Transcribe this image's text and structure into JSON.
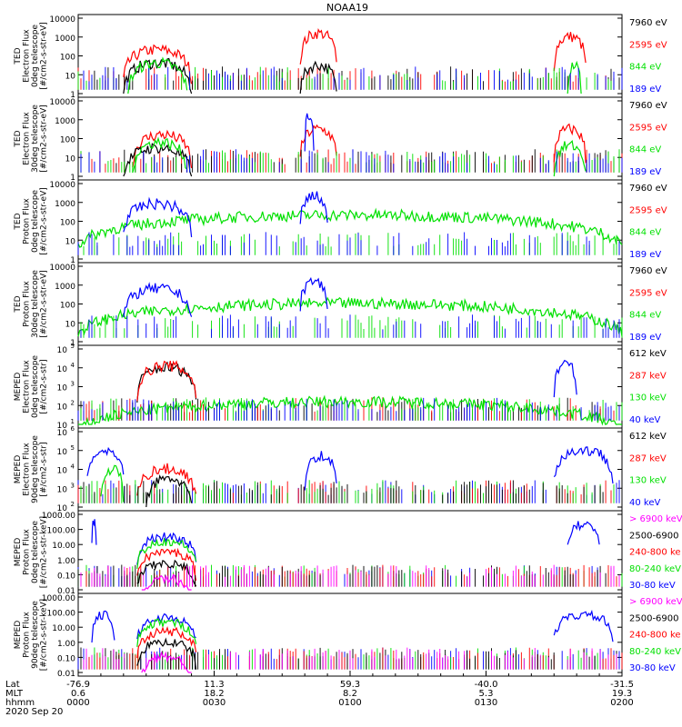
{
  "title": "NOAA19",
  "colors": {
    "blue": "#0000ff",
    "red": "#ff0000",
    "green": "#00e000",
    "black": "#000000",
    "magenta": "#ff00ff"
  },
  "panels": [
    {
      "id": "ted-e-0",
      "ylabel": [
        "TED",
        "Electron Flux",
        "0deg telescope",
        "[#/cm2-s-str-eV]"
      ],
      "yticks": [
        "10000",
        "1000",
        "100",
        "10",
        "1"
      ],
      "sup": false,
      "legend": [
        {
          "text": "7960 eV",
          "color": "black"
        },
        {
          "text": "2595 eV",
          "color": "red"
        },
        {
          "text": "844 eV",
          "color": "green"
        },
        {
          "text": "189 eV",
          "color": "blue"
        }
      ]
    },
    {
      "id": "ted-e-30",
      "ylabel": [
        "TED",
        "Electron Flux",
        "30deg telescope",
        "[#/cm2-s-str-eV]"
      ],
      "yticks": [
        "10000",
        "1000",
        "100",
        "10",
        "1"
      ],
      "sup": false,
      "legend": [
        {
          "text": "7960 eV",
          "color": "black"
        },
        {
          "text": "2595 eV",
          "color": "red"
        },
        {
          "text": "844 eV",
          "color": "green"
        },
        {
          "text": "189 eV",
          "color": "blue"
        }
      ]
    },
    {
      "id": "ted-p-0",
      "ylabel": [
        "TED",
        "Proton Flux",
        "0deg telescope",
        "[#/cm2-s-str-eV]"
      ],
      "yticks": [
        "10000",
        "1000",
        "100",
        "10",
        "1"
      ],
      "sup": false,
      "legend": [
        {
          "text": "7960 eV",
          "color": "black"
        },
        {
          "text": "2595 eV",
          "color": "red"
        },
        {
          "text": "844 eV",
          "color": "green"
        },
        {
          "text": "189 eV",
          "color": "blue"
        }
      ]
    },
    {
      "id": "ted-p-30",
      "ylabel": [
        "TED",
        "Proton Flux",
        "30deg telescope",
        "[#/cm2-s-str-eV]"
      ],
      "yticks": [
        "10000",
        "1000",
        "100",
        "10",
        "1"
      ],
      "sup": false,
      "legend": [
        {
          "text": "7960 eV",
          "color": "black"
        },
        {
          "text": "2595 eV",
          "color": "red"
        },
        {
          "text": "844 eV",
          "color": "green"
        },
        {
          "text": "189 eV",
          "color": "blue"
        }
      ]
    },
    {
      "id": "meped-e-0",
      "ylabel": [
        "MEPED",
        "Electron Flux",
        "0deg telescope",
        "[#/cm2-s-str]"
      ],
      "yticks": [
        "5",
        "4",
        "3",
        "2",
        "1"
      ],
      "sup": true,
      "legend": [
        {
          "text": "612 keV",
          "color": "black"
        },
        {
          "text": "287 keV",
          "color": "red"
        },
        {
          "text": "130 keV",
          "color": "green"
        },
        {
          "text": "40 keV",
          "color": "blue"
        }
      ]
    },
    {
      "id": "meped-e-90",
      "ylabel": [
        "MEPED",
        "Electron Flux",
        "90deg telescope",
        "[#/cm2-s-str]"
      ],
      "yticks": [
        "6",
        "5",
        "4",
        "3",
        "2"
      ],
      "sup": true,
      "legend": [
        {
          "text": "612 keV",
          "color": "black"
        },
        {
          "text": "287 keV",
          "color": "red"
        },
        {
          "text": "130 keV",
          "color": "green"
        },
        {
          "text": "40 keV",
          "color": "blue"
        }
      ]
    },
    {
      "id": "meped-p-0",
      "ylabel": [
        "MEPED",
        "Proton Flux",
        "0deg telescope",
        "[#/cm2-s-str-keV]"
      ],
      "yticks": [
        "1000.00",
        "100.00",
        "10.00",
        "1.00",
        "0.10",
        "0.01"
      ],
      "sup": false,
      "legend": [
        {
          "text": "> 6900 keV",
          "color": "magenta"
        },
        {
          "text": "2500-6900",
          "color": "black"
        },
        {
          "text": "240-800 ke",
          "color": "red"
        },
        {
          "text": "80-240 keV",
          "color": "green"
        },
        {
          "text": "30-80 keV",
          "color": "blue"
        }
      ]
    },
    {
      "id": "meped-p-90",
      "ylabel": [
        "MEPED",
        "Proton Flux",
        "90deg telescope",
        "[#/cm2-s-str-keV]"
      ],
      "yticks": [
        "1000.00",
        "100.00",
        "10.00",
        "1.00",
        "0.10",
        "0.01"
      ],
      "sup": false,
      "legend": [
        {
          "text": "> 6900 keV",
          "color": "magenta"
        },
        {
          "text": "2500-6900",
          "color": "black"
        },
        {
          "text": "240-800 ke",
          "color": "red"
        },
        {
          "text": "80-240 keV",
          "color": "green"
        },
        {
          "text": "30-80 keV",
          "color": "blue"
        }
      ]
    }
  ],
  "xaxis": {
    "row_labels": [
      "Lat",
      "MLT",
      "hhmm"
    ],
    "ticks": [
      {
        "lat": "-76.9",
        "mlt": "0.6",
        "hhmm": "0000"
      },
      {
        "lat": "11.3",
        "mlt": "18.2",
        "hhmm": "0030"
      },
      {
        "lat": "59.3",
        "mlt": "8.2",
        "hhmm": "0100"
      },
      {
        "lat": "-40.0",
        "mlt": "5.3",
        "hhmm": "0130"
      },
      {
        "lat": "-31.5",
        "mlt": "19.3",
        "hhmm": "0200"
      }
    ],
    "date": "2020 Sep 20"
  },
  "chart_data": {
    "type": "line",
    "title": "NOAA19",
    "x": [
      "0000",
      "0030",
      "0100",
      "0130",
      "0200"
    ],
    "series_note": "",
    "panels": [
      {
        "id": "ted-e-0",
        "yscale": "log",
        "ylim": [
          1,
          10000
        ],
        "series": [
          {
            "name": "2595 eV",
            "color": "red",
            "events": [
              {
                "from": "0010",
                "to": "0025",
                "level": 200
              },
              {
                "from": "0049",
                "to": "0057",
                "level": 1500
              },
              {
                "from": "0145",
                "to": "0152",
                "level": 1000
              }
            ]
          },
          {
            "name": "7960 eV",
            "color": "black",
            "events": [
              {
                "from": "0010",
                "to": "0025",
                "level": 40
              },
              {
                "from": "0049",
                "to": "0057",
                "level": 30
              }
            ]
          },
          {
            "name": "844 eV",
            "color": "green",
            "events": [
              {
                "from": "0011",
                "to": "0024",
                "level": 40
              },
              {
                "from": "0148",
                "to": "0151",
                "level": 30
              }
            ]
          },
          {
            "name": "189 eV",
            "color": "blue",
            "events": []
          }
        ]
      },
      {
        "id": "ted-e-30",
        "yscale": "log",
        "ylim": [
          1,
          10000
        ],
        "series": [
          {
            "name": "2595 eV",
            "color": "red",
            "events": [
              {
                "from": "0012",
                "to": "0025",
                "level": 150
              },
              {
                "from": "0049",
                "to": "0057",
                "level": 300
              },
              {
                "from": "0145",
                "to": "0152",
                "level": 300
              }
            ]
          },
          {
            "name": "7960 eV",
            "color": "black",
            "events": [
              {
                "from": "0010",
                "to": "0025",
                "level": 30
              }
            ]
          },
          {
            "name": "844 eV",
            "color": "green",
            "events": [
              {
                "from": "0012",
                "to": "0024",
                "level": 60
              },
              {
                "from": "0145",
                "to": "0152",
                "level": 40
              }
            ]
          },
          {
            "name": "189 eV",
            "color": "blue",
            "events": [
              {
                "from": "0050",
                "to": "0052",
                "level": 1500
              }
            ]
          }
        ]
      },
      {
        "id": "ted-p-0",
        "yscale": "log",
        "ylim": [
          1,
          10000
        ],
        "series": [
          {
            "name": "844 eV",
            "color": "green",
            "events": [
              {
                "from": "0000",
                "to": "0200",
                "level": 200
              }
            ]
          },
          {
            "name": "189 eV",
            "color": "blue",
            "events": [
              {
                "from": "0010",
                "to": "0025",
                "level": 800
              },
              {
                "from": "0049",
                "to": "0055",
                "level": 2000
              }
            ]
          }
        ]
      },
      {
        "id": "ted-p-30",
        "yscale": "log",
        "ylim": [
          1,
          10000
        ],
        "series": [
          {
            "name": "844 eV",
            "color": "green",
            "events": [
              {
                "from": "0000",
                "to": "0200",
                "level": 100
              }
            ]
          },
          {
            "name": "189 eV",
            "color": "blue",
            "events": [
              {
                "from": "0010",
                "to": "0025",
                "level": 600
              },
              {
                "from": "0049",
                "to": "0055",
                "level": 1500
              }
            ]
          }
        ]
      },
      {
        "id": "meped-e-0",
        "yscale": "log",
        "ylim": [
          10,
          100000
        ],
        "series": [
          {
            "name": "612 keV",
            "color": "black",
            "events": [
              {
                "from": "0013",
                "to": "0026",
                "level": 10000
              }
            ]
          },
          {
            "name": "287 keV",
            "color": "red",
            "events": [
              {
                "from": "0013",
                "to": "0026",
                "level": 12000
              }
            ]
          },
          {
            "name": "130 keV",
            "color": "green",
            "events": [
              {
                "from": "0000",
                "to": "0200",
                "level": 150
              }
            ]
          },
          {
            "name": "40 keV",
            "color": "blue",
            "events": [
              {
                "from": "0145",
                "to": "0150",
                "level": 15000
              }
            ]
          }
        ]
      },
      {
        "id": "meped-e-90",
        "yscale": "log",
        "ylim": [
          100,
          1000000
        ],
        "series": [
          {
            "name": "40 keV",
            "color": "blue",
            "events": [
              {
                "from": "0002",
                "to": "0010",
                "level": 100000
              },
              {
                "from": "0050",
                "to": "0057",
                "level": 50000
              },
              {
                "from": "0145",
                "to": "0158",
                "level": 100000
              }
            ]
          },
          {
            "name": "287 keV",
            "color": "red",
            "events": [
              {
                "from": "0013",
                "to": "0026",
                "level": 10000
              }
            ]
          },
          {
            "name": "130 keV",
            "color": "green",
            "events": [
              {
                "from": "0005",
                "to": "0010",
                "level": 10000
              }
            ]
          },
          {
            "name": "612 keV",
            "color": "black",
            "events": [
              {
                "from": "0015",
                "to": "0025",
                "level": 3000
              }
            ]
          }
        ]
      },
      {
        "id": "meped-p-0",
        "yscale": "log",
        "ylim": [
          0.01,
          1000
        ],
        "series": [
          {
            "name": "30-80 keV",
            "color": "blue",
            "events": [
              {
                "from": "0003",
                "to": "0004",
                "level": 300
              },
              {
                "from": "0013",
                "to": "0026",
                "level": 30
              },
              {
                "from": "0148",
                "to": "0155",
                "level": 200
              }
            ]
          },
          {
            "name": "80-240 keV",
            "color": "green",
            "events": [
              {
                "from": "0013",
                "to": "0026",
                "level": 15
              }
            ]
          },
          {
            "name": "240-800 ke",
            "color": "red",
            "events": [
              {
                "from": "0013",
                "to": "0026",
                "level": 3
              }
            ]
          },
          {
            "name": "2500-6900",
            "color": "black",
            "events": [
              {
                "from": "0013",
                "to": "0026",
                "level": 0.5
              }
            ]
          },
          {
            "name": "> 6900 keV",
            "color": "magenta",
            "events": [
              {
                "from": "0014",
                "to": "0025",
                "level": 0.05
              }
            ]
          }
        ]
      },
      {
        "id": "meped-p-90",
        "yscale": "log",
        "ylim": [
          0.01,
          1000
        ],
        "series": [
          {
            "name": "30-80 keV",
            "color": "blue",
            "events": [
              {
                "from": "0003",
                "to": "0008",
                "level": 60
              },
              {
                "from": "0013",
                "to": "0026",
                "level": 40
              },
              {
                "from": "0145",
                "to": "0158",
                "level": 60
              }
            ]
          },
          {
            "name": "80-240 keV",
            "color": "green",
            "events": [
              {
                "from": "0013",
                "to": "0026",
                "level": 20
              }
            ]
          },
          {
            "name": "240-800 ke",
            "color": "red",
            "events": [
              {
                "from": "0013",
                "to": "0026",
                "level": 5
              }
            ]
          },
          {
            "name": "2500-6900",
            "color": "black",
            "events": [
              {
                "from": "0013",
                "to": "0026",
                "level": 1
              }
            ]
          },
          {
            "name": "> 6900 keV",
            "color": "magenta",
            "events": [
              {
                "from": "0014",
                "to": "0025",
                "level": 0.1
              }
            ]
          }
        ]
      }
    ]
  }
}
